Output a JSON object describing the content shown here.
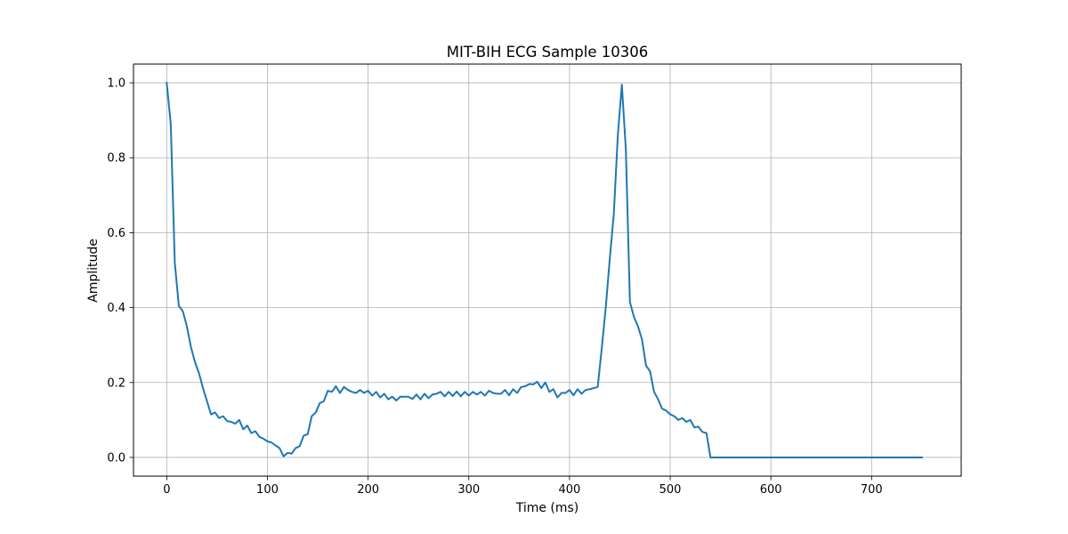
{
  "chart_data": {
    "type": "line",
    "title": "MIT-BIH ECG Sample 10306",
    "xlabel": "Time (ms)",
    "ylabel": "Amplitude",
    "xlim": [
      -33,
      789
    ],
    "ylim": [
      -0.05,
      1.05
    ],
    "xticks": [
      0,
      100,
      200,
      300,
      400,
      500,
      600,
      700
    ],
    "yticks": [
      0.0,
      0.2,
      0.4,
      0.6,
      0.8,
      1.0
    ],
    "xtick_labels": [
      "0",
      "100",
      "200",
      "300",
      "400",
      "500",
      "600",
      "700"
    ],
    "ytick_labels": [
      "0.0",
      "0.2",
      "0.4",
      "0.6",
      "0.8",
      "1.0"
    ],
    "grid": true,
    "series": [
      {
        "color": "#1f77b4",
        "x": [
          0,
          4,
          8,
          12,
          16,
          20,
          24,
          28,
          32,
          36,
          40,
          44,
          48,
          52,
          56,
          60,
          64,
          68,
          72,
          76,
          80,
          84,
          88,
          92,
          96,
          100,
          104,
          108,
          112,
          116,
          120,
          124,
          128,
          132,
          136,
          140,
          144,
          148,
          152,
          156,
          160,
          164,
          168,
          172,
          176,
          180,
          184,
          188,
          192,
          196,
          200,
          204,
          208,
          212,
          216,
          220,
          224,
          228,
          232,
          236,
          240,
          244,
          248,
          252,
          256,
          260,
          264,
          268,
          272,
          276,
          280,
          284,
          288,
          292,
          296,
          300,
          304,
          308,
          312,
          316,
          320,
          324,
          328,
          332,
          336,
          340,
          344,
          348,
          352,
          356,
          360,
          364,
          368,
          372,
          376,
          380,
          384,
          388,
          392,
          396,
          400,
          404,
          408,
          412,
          416,
          420,
          424,
          428,
          432,
          436,
          440,
          444,
          448,
          452,
          456,
          460,
          464,
          468,
          472,
          476,
          480,
          484,
          488,
          492,
          496,
          500,
          504,
          508,
          512,
          516,
          520,
          524,
          528,
          532,
          536,
          540,
          750
        ],
        "y": [
          1.0,
          0.89,
          0.52,
          0.405,
          0.39,
          0.35,
          0.295,
          0.255,
          0.225,
          0.185,
          0.15,
          0.115,
          0.12,
          0.105,
          0.11,
          0.097,
          0.095,
          0.09,
          0.1,
          0.075,
          0.085,
          0.065,
          0.07,
          0.055,
          0.05,
          0.043,
          0.04,
          0.032,
          0.025,
          0.003,
          0.012,
          0.01,
          0.025,
          0.03,
          0.058,
          0.062,
          0.11,
          0.12,
          0.145,
          0.15,
          0.178,
          0.175,
          0.19,
          0.172,
          0.188,
          0.18,
          0.175,
          0.172,
          0.18,
          0.172,
          0.178,
          0.165,
          0.175,
          0.16,
          0.17,
          0.155,
          0.162,
          0.152,
          0.162,
          0.162,
          0.162,
          0.156,
          0.168,
          0.155,
          0.17,
          0.158,
          0.168,
          0.17,
          0.175,
          0.163,
          0.175,
          0.164,
          0.176,
          0.163,
          0.175,
          0.165,
          0.175,
          0.168,
          0.175,
          0.165,
          0.178,
          0.172,
          0.17,
          0.17,
          0.18,
          0.166,
          0.182,
          0.172,
          0.188,
          0.19,
          0.196,
          0.195,
          0.202,
          0.185,
          0.2,
          0.175,
          0.182,
          0.16,
          0.172,
          0.172,
          0.18,
          0.166,
          0.182,
          0.17,
          0.18,
          0.182,
          0.185,
          0.188,
          0.29,
          0.4,
          0.53,
          0.65,
          0.86,
          0.995,
          0.82,
          0.415,
          0.375,
          0.35,
          0.315,
          0.245,
          0.23,
          0.175,
          0.155,
          0.13,
          0.125,
          0.115,
          0.11,
          0.1,
          0.105,
          0.095,
          0.1,
          0.08,
          0.082,
          0.068,
          0.065,
          0.0,
          0.0
        ]
      }
    ]
  }
}
